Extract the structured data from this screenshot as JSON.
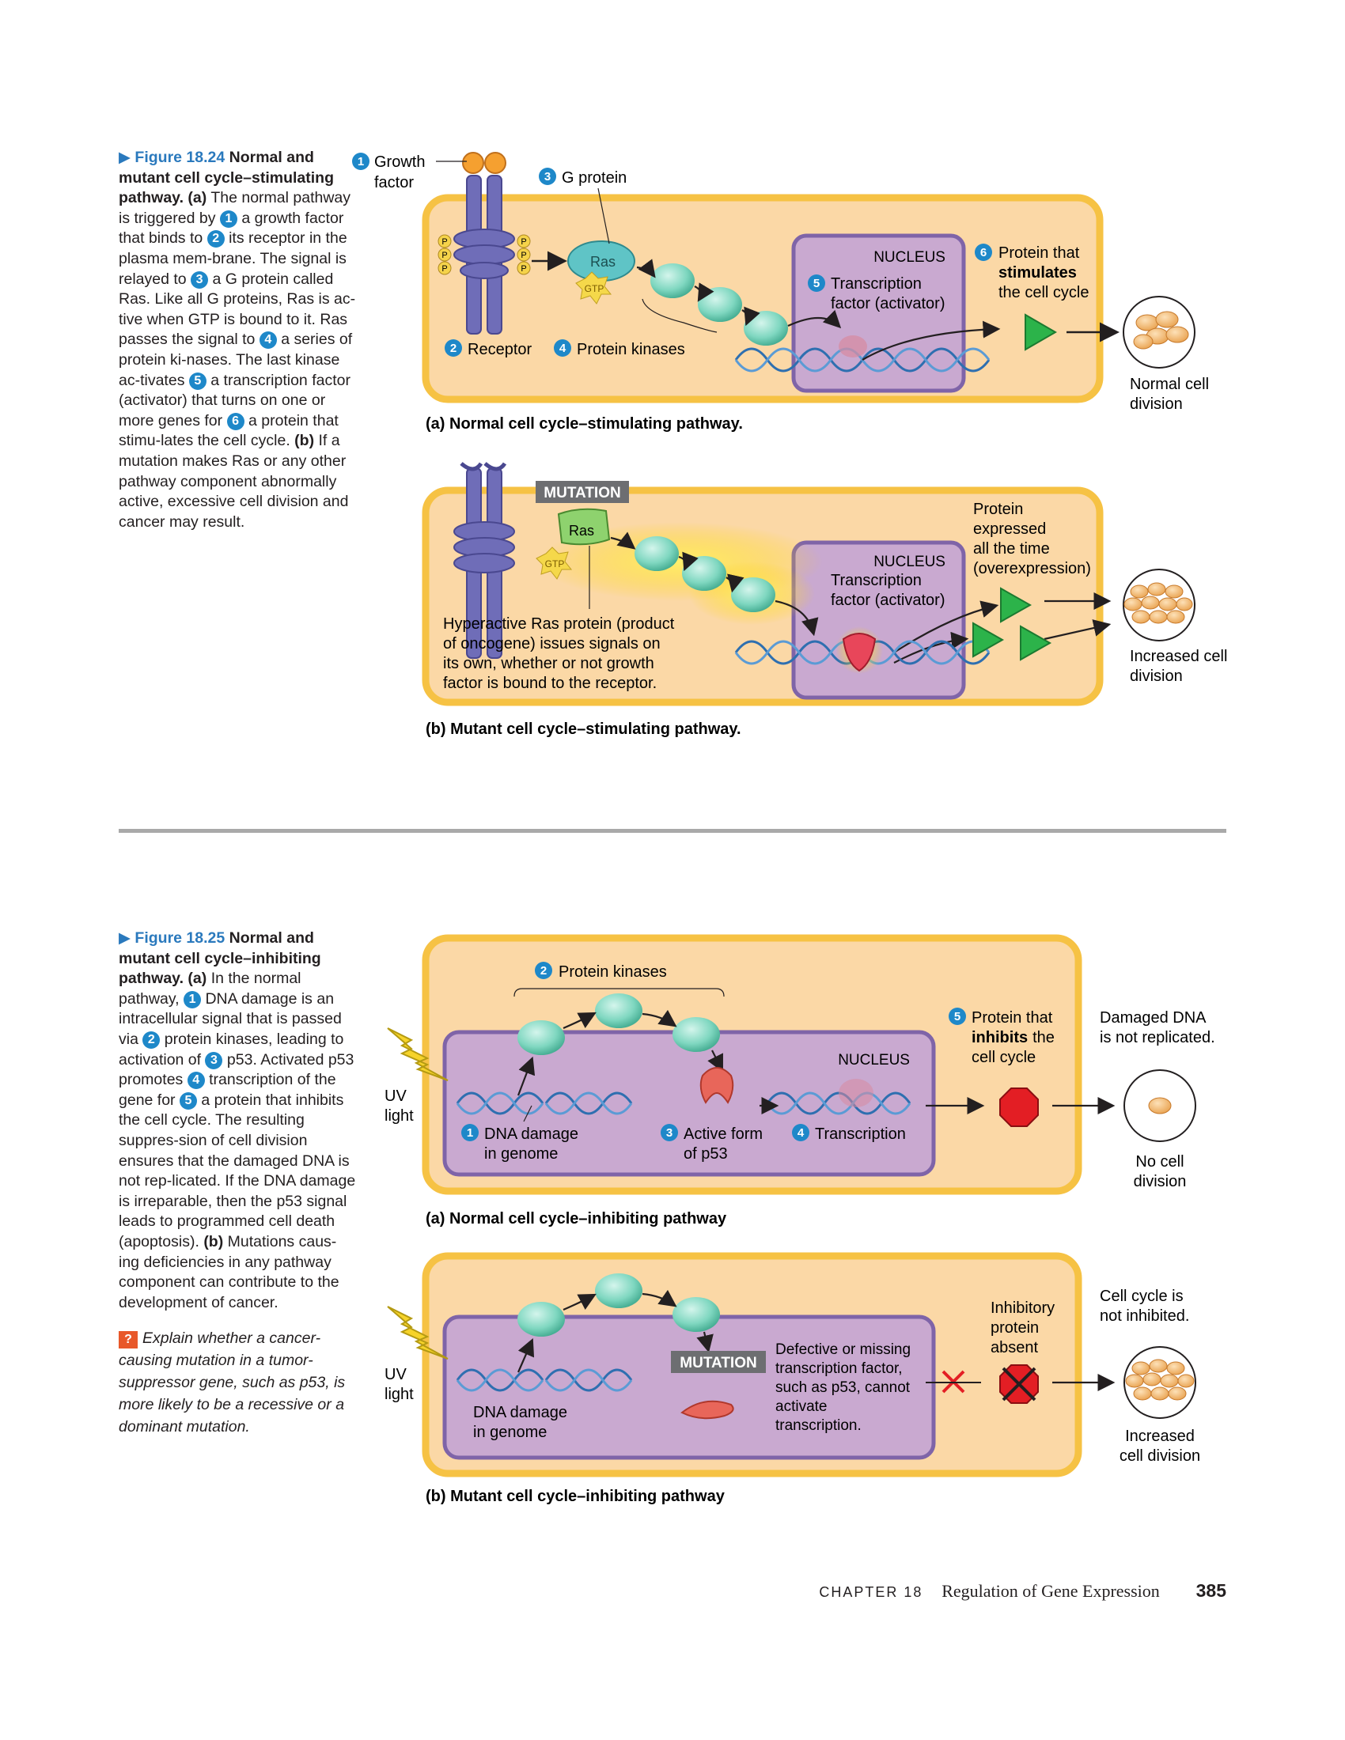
{
  "fig24": {
    "caption_fig": "▶ Figure 18.24",
    "caption_title": "Normal and mutant cell cycle–stimulating pathway.",
    "a_label": "(a)",
    "t1": "The normal pathway is triggered by",
    "t2": "a growth factor that binds to",
    "t3": "its receptor in the plasma mem-brane. The signal is relayed to",
    "t4": "a G protein called Ras. Like all G proteins, Ras is ac-tive when GTP is bound to it. Ras passes the signal to",
    "t5": "a series of protein ki-nases. The last kinase ac-tivates",
    "t6": "a transcription factor (activator) that turns on one or more genes for",
    "t7": "a protein that stimu-lates the cell cycle.",
    "b_label": "(b)",
    "t8": "If a mutation makes Ras or any other pathway component abnormally active, excessive cell division and cancer may result.",
    "panel_a": {
      "growth_factor": [
        "Growth",
        "factor"
      ],
      "g_protein": "G protein",
      "receptor": "Receptor",
      "protein_kinases": "Protein kinases",
      "ras": "Ras",
      "gtp": "GTP",
      "p": "P",
      "nucleus": "NUCLEUS",
      "transcription_factor": [
        "Transcription",
        "factor (activator)"
      ],
      "protein_stim": [
        "Protein that",
        "stimulates",
        "the cell cycle"
      ],
      "outcome": [
        "Normal cell",
        "division"
      ],
      "title": "(a) Normal cell cycle–stimulating pathway."
    },
    "panel_b": {
      "mutation": "MUTATION",
      "ras": "Ras",
      "gtp": "GTP",
      "nucleus": "NUCLEUS",
      "transcription_factor": [
        "Transcription",
        "factor (activator)"
      ],
      "protein_expressed": [
        "Protein",
        "expressed",
        "all the time",
        "(overexpression)"
      ],
      "hyperactive": [
        "Hyperactive Ras protein (product",
        "of oncogene) issues signals on",
        "its own, whether or not growth",
        "factor is bound to the receptor."
      ],
      "outcome": [
        "Increased cell",
        "division"
      ],
      "title": "(b) Mutant cell cycle–stimulating pathway."
    }
  },
  "fig25": {
    "caption_fig": "▶ Figure 18.25",
    "caption_title": "Normal and mutant cell cycle–inhibiting pathway.",
    "a_label": "(a)",
    "t1": "In the normal pathway,",
    "t2": "DNA damage is an intracellular signal that is passed via",
    "t3": "protein kinases, leading to activation of",
    "t4": "p53. Activated p53 promotes",
    "t5": "transcription of the gene for",
    "t6": "a protein that inhibits the cell cycle. The resulting suppres-sion of cell division ensures that the damaged DNA is not rep-licated. If the DNA damage is irreparable, then the p53 signal leads to programmed cell death (apoptosis).",
    "b_label": "(b)",
    "t7": "Mutations caus-ing deficiencies in any pathway component can contribute to the development of cancer.",
    "question_mark": "?",
    "question": "Explain whether a cancer-causing mutation in a tumor-suppressor gene, such as p53, is more likely to be a recessive or a dominant mutation.",
    "panel_a": {
      "protein_kinases": "Protein kinases",
      "uv": [
        "UV",
        "light"
      ],
      "nucleus": "NUCLEUS",
      "dna_damage": [
        "DNA damage",
        "in genome"
      ],
      "active_p53": [
        "Active form",
        "of p53"
      ],
      "transcription": "Transcription",
      "protein_inhib": [
        "Protein that",
        "inhibits",
        "the",
        "cell cycle"
      ],
      "damaged_dna": [
        "Damaged DNA",
        "is not replicated."
      ],
      "outcome": [
        "No cell",
        "division"
      ],
      "title": "(a) Normal cell cycle–inhibiting pathway"
    },
    "panel_b": {
      "uv": [
        "UV",
        "light"
      ],
      "mutation": "MUTATION",
      "dna_damage": [
        "DNA damage",
        "in genome"
      ],
      "defective": [
        "Defective or missing",
        "transcription factor,",
        "such as p53, cannot",
        "activate",
        "transcription."
      ],
      "inhib_absent": [
        "Inhibitory",
        "protein",
        "absent"
      ],
      "not_inhibited": [
        "Cell cycle is",
        "not inhibited."
      ],
      "outcome": [
        "Increased",
        "cell division"
      ],
      "title": "(b) Mutant cell cycle–inhibiting pathway"
    }
  },
  "footer": {
    "chapter": "CHAPTER 18",
    "title": "Regulation of Gene Expression",
    "page": "385"
  },
  "colors": {
    "cell_outer": "#f6c244",
    "cell_fill": "#fbd8a6",
    "nucleus_fill": "#c9a9d0",
    "nucleus_stroke": "#7f64a8",
    "kinase": "#7fd7c0",
    "accent_blue": "#2a79bd",
    "receptor": "#6f6db8"
  }
}
